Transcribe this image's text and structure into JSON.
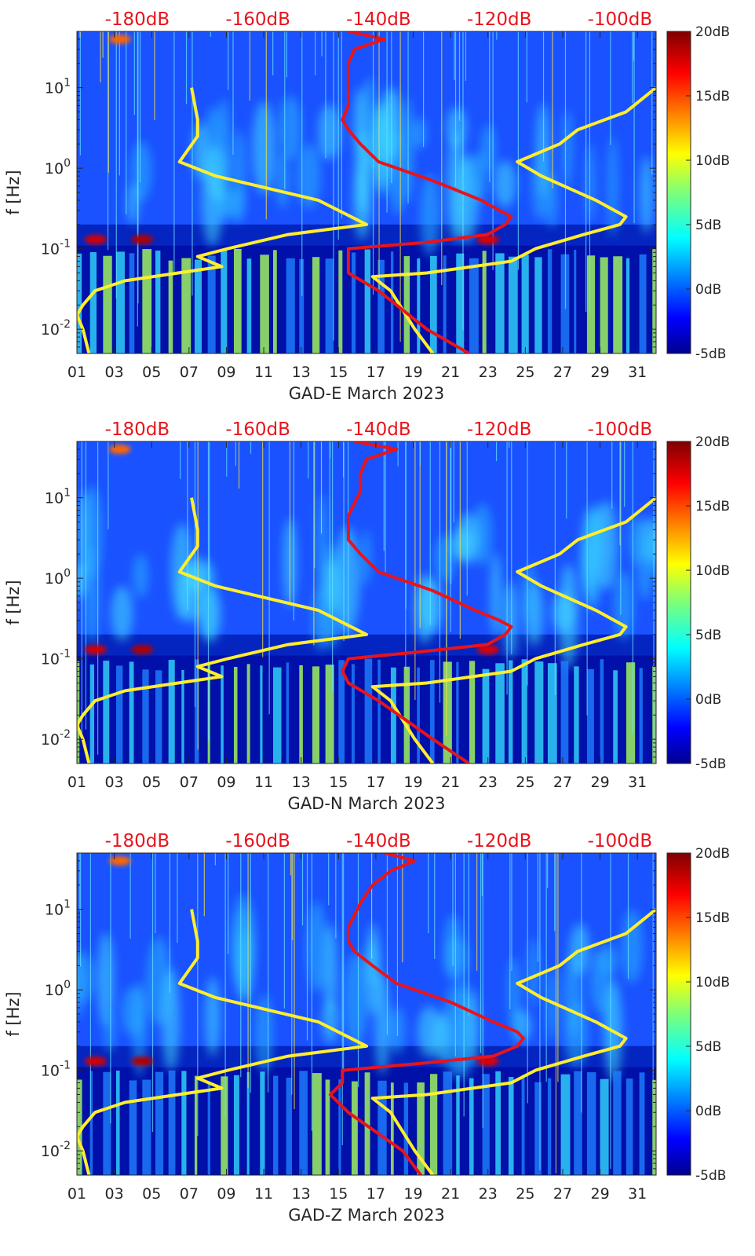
{
  "chart_data": [
    {
      "type": "heatmap",
      "panel": "GAD-E",
      "xlabel": "GAD-E March 2023",
      "ylabel": "f [Hz]",
      "x_ticks": [
        "01",
        "03",
        "05",
        "07",
        "09",
        "11",
        "13",
        "15",
        "17",
        "19",
        "21",
        "23",
        "25",
        "27",
        "29",
        "31"
      ],
      "y_ticks": [
        {
          "base": "10",
          "exp": "1",
          "value": 10
        },
        {
          "base": "10",
          "exp": "0",
          "value": 1
        },
        {
          "base": "10",
          "exp": "-1",
          "value": 0.1
        },
        {
          "base": "10",
          "exp": "-2",
          "value": 0.01
        }
      ],
      "y_scale": "log",
      "ylim_hz": [
        0.005,
        50
      ],
      "xlim_day": [
        1,
        32
      ],
      "top_axis_ticks": [
        "-180dB",
        "-160dB",
        "-140dB",
        "-120dB",
        "-100dB"
      ],
      "top_axis_range_db": [
        -190,
        -94
      ],
      "colorbar": {
        "ticks": [
          "20dB",
          "15dB",
          "10dB",
          "5dB",
          "0dB",
          "-5dB"
        ],
        "range_db": [
          -5,
          20
        ]
      },
      "red_curve_db": [
        [
          50,
          -145
        ],
        [
          40,
          -139
        ],
        [
          30,
          -144
        ],
        [
          20,
          -145
        ],
        [
          12,
          -145
        ],
        [
          6,
          -145
        ],
        [
          4,
          -146
        ],
        [
          3,
          -145
        ],
        [
          2,
          -143
        ],
        [
          1.2,
          -140
        ],
        [
          0.7,
          -131
        ],
        [
          0.4,
          -123
        ],
        [
          0.3,
          -120
        ],
        [
          0.25,
          -118
        ],
        [
          0.2,
          -119
        ],
        [
          0.15,
          -122
        ],
        [
          0.12,
          -132
        ],
        [
          0.1,
          -145
        ],
        [
          0.07,
          -145
        ],
        [
          0.05,
          -145
        ],
        [
          0.03,
          -140
        ],
        [
          0.01,
          -132
        ],
        [
          0.005,
          -125
        ]
      ],
      "yellow_curve_low_db": [
        [
          10,
          -171
        ],
        [
          4,
          -170
        ],
        [
          2.5,
          -170
        ],
        [
          1.2,
          -173
        ],
        [
          0.8,
          -167
        ],
        [
          0.4,
          -150
        ],
        [
          0.2,
          -142
        ],
        [
          0.15,
          -155
        ],
        [
          0.1,
          -165
        ],
        [
          0.08,
          -170
        ],
        [
          0.06,
          -166
        ],
        [
          0.04,
          -182
        ],
        [
          0.03,
          -187
        ],
        [
          0.02,
          -189
        ],
        [
          0.015,
          -190
        ],
        [
          0.01,
          -189
        ],
        [
          0.005,
          -188
        ]
      ],
      "yellow_curve_high_db": [
        [
          10,
          -94
        ],
        [
          5,
          -99
        ],
        [
          3,
          -107
        ],
        [
          2,
          -110
        ],
        [
          1.2,
          -117
        ],
        [
          0.8,
          -113
        ],
        [
          0.4,
          -104
        ],
        [
          0.25,
          -99
        ],
        [
          0.2,
          -100
        ],
        [
          0.15,
          -106
        ],
        [
          0.1,
          -114
        ],
        [
          0.07,
          -118
        ],
        [
          0.05,
          -132
        ],
        [
          0.045,
          -141
        ],
        [
          0.03,
          -138
        ],
        [
          0.01,
          -134
        ],
        [
          0.005,
          -131
        ]
      ]
    },
    {
      "type": "heatmap",
      "panel": "GAD-N",
      "xlabel": "GAD-N March 2023",
      "ylabel": "f [Hz]",
      "x_ticks": [
        "01",
        "03",
        "05",
        "07",
        "09",
        "11",
        "13",
        "15",
        "17",
        "19",
        "21",
        "23",
        "25",
        "27",
        "29",
        "31"
      ],
      "y_ticks": [
        {
          "base": "10",
          "exp": "1",
          "value": 10
        },
        {
          "base": "10",
          "exp": "0",
          "value": 1
        },
        {
          "base": "10",
          "exp": "-1",
          "value": 0.1
        },
        {
          "base": "10",
          "exp": "-2",
          "value": 0.01
        }
      ],
      "y_scale": "log",
      "ylim_hz": [
        0.005,
        50
      ],
      "xlim_day": [
        1,
        32
      ],
      "top_axis_ticks": [
        "-180dB",
        "-160dB",
        "-140dB",
        "-120dB",
        "-100dB"
      ],
      "top_axis_range_db": [
        -190,
        -94
      ],
      "colorbar": {
        "ticks": [
          "20dB",
          "15dB",
          "10dB",
          "5dB",
          "0dB",
          "-5dB"
        ],
        "range_db": [
          -5,
          20
        ]
      },
      "red_curve_db": [
        [
          50,
          -144
        ],
        [
          40,
          -137
        ],
        [
          30,
          -142
        ],
        [
          20,
          -143
        ],
        [
          12,
          -143
        ],
        [
          6,
          -145
        ],
        [
          4,
          -145
        ],
        [
          3,
          -145
        ],
        [
          2,
          -143
        ],
        [
          1.2,
          -140
        ],
        [
          0.7,
          -131
        ],
        [
          0.4,
          -124
        ],
        [
          0.3,
          -120
        ],
        [
          0.25,
          -118
        ],
        [
          0.2,
          -119
        ],
        [
          0.15,
          -122
        ],
        [
          0.12,
          -134
        ],
        [
          0.1,
          -145
        ],
        [
          0.07,
          -146
        ],
        [
          0.05,
          -145
        ],
        [
          0.03,
          -140
        ],
        [
          0.01,
          -131
        ],
        [
          0.005,
          -125
        ]
      ],
      "yellow_curve_low_db": [
        [
          10,
          -171
        ],
        [
          4,
          -170
        ],
        [
          2.5,
          -170
        ],
        [
          1.2,
          -173
        ],
        [
          0.8,
          -167
        ],
        [
          0.4,
          -150
        ],
        [
          0.2,
          -142
        ],
        [
          0.15,
          -155
        ],
        [
          0.1,
          -165
        ],
        [
          0.08,
          -170
        ],
        [
          0.06,
          -166
        ],
        [
          0.04,
          -182
        ],
        [
          0.03,
          -187
        ],
        [
          0.02,
          -189
        ],
        [
          0.015,
          -190
        ],
        [
          0.01,
          -189
        ],
        [
          0.005,
          -188
        ]
      ],
      "yellow_curve_high_db": [
        [
          10,
          -94
        ],
        [
          5,
          -99
        ],
        [
          3,
          -107
        ],
        [
          2,
          -110
        ],
        [
          1.2,
          -117
        ],
        [
          0.8,
          -113
        ],
        [
          0.4,
          -104
        ],
        [
          0.25,
          -99
        ],
        [
          0.2,
          -100
        ],
        [
          0.15,
          -106
        ],
        [
          0.1,
          -114
        ],
        [
          0.07,
          -118
        ],
        [
          0.05,
          -132
        ],
        [
          0.045,
          -141
        ],
        [
          0.03,
          -138
        ],
        [
          0.01,
          -134
        ],
        [
          0.005,
          -131
        ]
      ]
    },
    {
      "type": "heatmap",
      "panel": "GAD-Z",
      "xlabel": "GAD-Z March 2023",
      "ylabel": "f [Hz]",
      "x_ticks": [
        "01",
        "03",
        "05",
        "07",
        "09",
        "11",
        "13",
        "15",
        "17",
        "19",
        "21",
        "23",
        "25",
        "27",
        "29",
        "31"
      ],
      "y_ticks": [
        {
          "base": "10",
          "exp": "1",
          "value": 10
        },
        {
          "base": "10",
          "exp": "0",
          "value": 1
        },
        {
          "base": "10",
          "exp": "-1",
          "value": 0.1
        },
        {
          "base": "10",
          "exp": "-2",
          "value": 0.01
        }
      ],
      "y_scale": "log",
      "ylim_hz": [
        0.005,
        50
      ],
      "xlim_day": [
        1,
        32
      ],
      "top_axis_ticks": [
        "-180dB",
        "-160dB",
        "-140dB",
        "-120dB",
        "-100dB"
      ],
      "top_axis_range_db": [
        -190,
        -94
      ],
      "colorbar": {
        "ticks": [
          "20dB",
          "15dB",
          "10dB",
          "5dB",
          "0dB",
          "-5dB"
        ],
        "range_db": [
          -5,
          20
        ]
      },
      "red_curve_db": [
        [
          50,
          -139
        ],
        [
          40,
          -134
        ],
        [
          30,
          -138
        ],
        [
          20,
          -141
        ],
        [
          12,
          -143
        ],
        [
          6,
          -145
        ],
        [
          4,
          -145
        ],
        [
          3,
          -144
        ],
        [
          2,
          -141
        ],
        [
          1.2,
          -137
        ],
        [
          0.7,
          -128
        ],
        [
          0.4,
          -121
        ],
        [
          0.3,
          -117
        ],
        [
          0.25,
          -116
        ],
        [
          0.2,
          -117
        ],
        [
          0.15,
          -121
        ],
        [
          0.12,
          -134
        ],
        [
          0.1,
          -146
        ],
        [
          0.07,
          -146
        ],
        [
          0.05,
          -148
        ],
        [
          0.03,
          -145
        ],
        [
          0.01,
          -136
        ],
        [
          0.005,
          -133
        ]
      ],
      "yellow_curve_low_db": [
        [
          10,
          -171
        ],
        [
          4,
          -170
        ],
        [
          2.5,
          -170
        ],
        [
          1.2,
          -173
        ],
        [
          0.8,
          -167
        ],
        [
          0.4,
          -150
        ],
        [
          0.2,
          -142
        ],
        [
          0.15,
          -155
        ],
        [
          0.1,
          -165
        ],
        [
          0.08,
          -170
        ],
        [
          0.06,
          -166
        ],
        [
          0.04,
          -182
        ],
        [
          0.03,
          -187
        ],
        [
          0.02,
          -189
        ],
        [
          0.015,
          -190
        ],
        [
          0.01,
          -189
        ],
        [
          0.005,
          -188
        ]
      ],
      "yellow_curve_high_db": [
        [
          10,
          -94
        ],
        [
          5,
          -99
        ],
        [
          3,
          -107
        ],
        [
          2,
          -110
        ],
        [
          1.2,
          -117
        ],
        [
          0.8,
          -113
        ],
        [
          0.4,
          -104
        ],
        [
          0.25,
          -99
        ],
        [
          0.2,
          -100
        ],
        [
          0.15,
          -106
        ],
        [
          0.1,
          -114
        ],
        [
          0.07,
          -118
        ],
        [
          0.05,
          -132
        ],
        [
          0.045,
          -141
        ],
        [
          0.03,
          -138
        ],
        [
          0.01,
          -134
        ],
        [
          0.005,
          -131
        ]
      ]
    }
  ],
  "colors": {
    "red_curve": "#e8141c",
    "yellow_curve": "#ffee2e",
    "top_labels": "#e8141c",
    "background_low": "#00008f",
    "background_mid": "#1f4fff"
  }
}
